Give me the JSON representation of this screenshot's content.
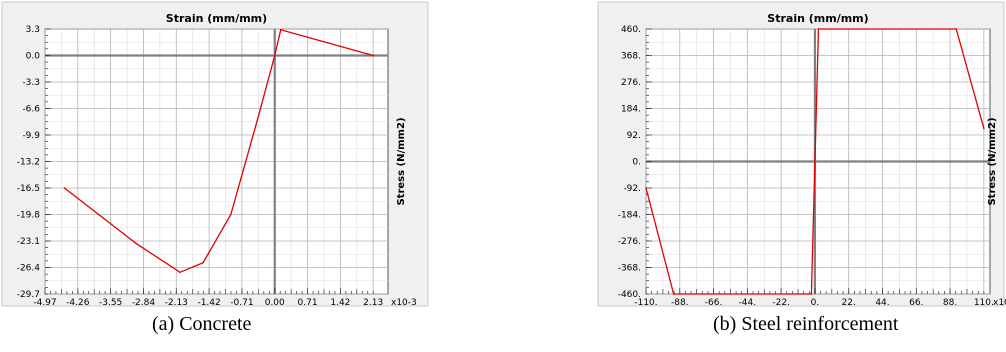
{
  "chart_data": [
    {
      "type": "line",
      "title": "Strain  (mm/mm)",
      "xlabel": "",
      "ylabel": "Stress  (N/mm2)",
      "x_multiplier_label": "x10-3",
      "caption": "(a) Concrete",
      "xlim": [
        -4.97,
        2.45
      ],
      "ylim": [
        -29.7,
        3.3
      ],
      "x_ticks": [
        "-4.97",
        "-4.26",
        "-3.55",
        "-2.84",
        "-2.13",
        "-1.42",
        "-0.71",
        "0.00",
        "0.71",
        "1.42",
        "2.13"
      ],
      "x_tick_values": [
        -4.97,
        -4.26,
        -3.55,
        -2.84,
        -2.13,
        -1.42,
        -0.71,
        0.0,
        0.71,
        1.42,
        2.13
      ],
      "y_ticks": [
        "3.3",
        "0.0",
        "-3.3",
        "-6.6",
        "-9.9",
        "-13.2",
        "-16.5",
        "-19.8",
        "-23.1",
        "-26.4",
        "-29.7"
      ],
      "y_tick_values": [
        3.3,
        0.0,
        -3.3,
        -6.6,
        -9.9,
        -13.2,
        -16.5,
        -19.8,
        -23.1,
        -26.4,
        -29.7
      ],
      "grid": true,
      "line_color": "#e00000",
      "series": [
        {
          "x": [
            -4.55,
            -3.0,
            -2.05,
            -1.55,
            -0.95,
            -0.35,
            0.0,
            0.13,
            2.13
          ],
          "y": [
            -16.5,
            -23.4,
            -27.0,
            -25.8,
            -19.8,
            -7.5,
            0.0,
            3.2,
            0.0
          ]
        }
      ]
    },
    {
      "type": "line",
      "title": "Strain  (mm/mm)",
      "xlabel": "",
      "ylabel": "Stress  (N/mm2)",
      "x_multiplier_label": "x10",
      "caption": "(b) Steel reinforcement",
      "xlim": [
        -110,
        114
      ],
      "ylim": [
        -460,
        460
      ],
      "x_ticks": [
        "-110.",
        "-88.",
        "-66.",
        "-44.",
        "-22.",
        "0.",
        "22.",
        "44.",
        "66.",
        "88.",
        "110."
      ],
      "x_tick_values": [
        -110,
        -88,
        -66,
        -44,
        -22,
        0,
        22,
        44,
        66,
        88,
        110
      ],
      "y_ticks": [
        "460.",
        "368.",
        "276.",
        "184.",
        "92.",
        "0.",
        "-92.",
        "-184.",
        "-276.",
        "-368.",
        "-460."
      ],
      "y_tick_values": [
        460,
        368,
        276,
        184,
        92,
        0,
        -92,
        -184,
        -276,
        -368,
        -460
      ],
      "grid": true,
      "line_color": "#e00000",
      "series": [
        {
          "x": [
            -110,
            -92,
            -2.3,
            2.3,
            92,
            110
          ],
          "y": [
            -92,
            -460,
            -460,
            460,
            460,
            115
          ]
        }
      ]
    }
  ]
}
